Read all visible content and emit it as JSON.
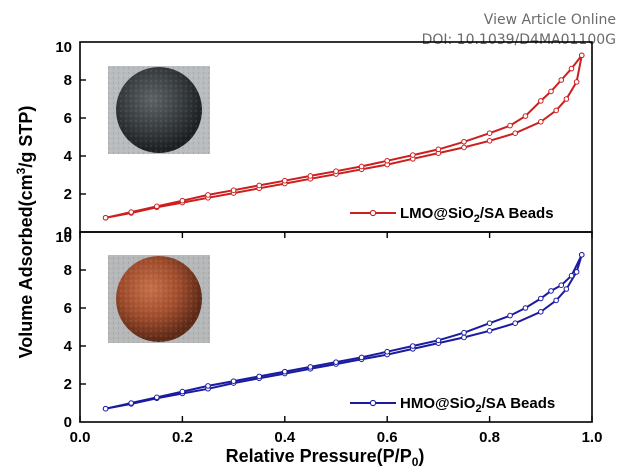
{
  "watermark": {
    "line1": "View Article Online",
    "line2": "DOI: 10.1039/D4MA01100G"
  },
  "chart_data": {
    "type": "line",
    "xlabel": "Relative Pressure(P/P",
    "xlabel_sub": "0",
    "xlabel_end": ")",
    "ylabel_pre": "Volume Adsorbed(cm",
    "ylabel_sup": "3",
    "ylabel_post": "/g STP)",
    "xlim": [
      0.0,
      1.0
    ],
    "xticks": [
      "0.0",
      "0.2",
      "0.4",
      "0.6",
      "0.8",
      "1.0"
    ],
    "panels": [
      {
        "ylim": [
          0,
          10
        ],
        "yticks": [
          "0",
          "2",
          "4",
          "6",
          "8",
          "10"
        ],
        "color": "#cc1f1f",
        "legend_position": "bottom-right",
        "legend_pre": "LMO@SiO",
        "legend_sub": "2",
        "legend_post": "/SA Beads",
        "inset_image": "black sphere bead photo",
        "series": [
          {
            "branch": "adsorption",
            "x": [
              0.05,
              0.1,
              0.15,
              0.2,
              0.25,
              0.3,
              0.35,
              0.4,
              0.45,
              0.5,
              0.55,
              0.6,
              0.65,
              0.7,
              0.75,
              0.8,
              0.85,
              0.9,
              0.93,
              0.95,
              0.97,
              0.98
            ],
            "y": [
              0.75,
              1.0,
              1.3,
              1.55,
              1.8,
              2.05,
              2.3,
              2.55,
              2.8,
              3.05,
              3.3,
              3.55,
              3.85,
              4.15,
              4.45,
              4.8,
              5.2,
              5.8,
              6.4,
              7.0,
              7.9,
              9.3
            ]
          },
          {
            "branch": "desorption",
            "x": [
              0.98,
              0.96,
              0.94,
              0.92,
              0.9,
              0.87,
              0.84,
              0.8,
              0.75,
              0.7,
              0.65,
              0.6,
              0.55,
              0.5,
              0.45,
              0.4,
              0.35,
              0.3,
              0.25,
              0.2,
              0.15,
              0.1,
              0.05
            ],
            "y": [
              9.3,
              8.6,
              8.0,
              7.4,
              6.9,
              6.1,
              5.6,
              5.2,
              4.75,
              4.35,
              4.05,
              3.75,
              3.45,
              3.2,
              2.95,
              2.7,
              2.45,
              2.2,
              1.95,
              1.65,
              1.35,
              1.05,
              0.75
            ]
          }
        ]
      },
      {
        "ylim": [
          0,
          10
        ],
        "yticks": [
          "0",
          "2",
          "4",
          "6",
          "8",
          "10"
        ],
        "color": "#1b1ba0",
        "legend_position": "bottom-right",
        "legend_pre": "HMO@SiO",
        "legend_sub": "2",
        "legend_post": "/SA Beads",
        "inset_image": "brown sphere bead photo",
        "series": [
          {
            "branch": "adsorption",
            "x": [
              0.05,
              0.1,
              0.15,
              0.2,
              0.25,
              0.3,
              0.35,
              0.4,
              0.45,
              0.5,
              0.55,
              0.6,
              0.65,
              0.7,
              0.75,
              0.8,
              0.85,
              0.9,
              0.93,
              0.95,
              0.97,
              0.98
            ],
            "y": [
              0.7,
              0.95,
              1.25,
              1.5,
              1.75,
              2.05,
              2.3,
              2.55,
              2.8,
              3.05,
              3.3,
              3.55,
              3.85,
              4.15,
              4.45,
              4.8,
              5.2,
              5.8,
              6.4,
              7.0,
              7.9,
              8.8
            ]
          },
          {
            "branch": "desorption",
            "x": [
              0.98,
              0.96,
              0.94,
              0.92,
              0.9,
              0.87,
              0.84,
              0.8,
              0.75,
              0.7,
              0.65,
              0.6,
              0.55,
              0.5,
              0.45,
              0.4,
              0.35,
              0.3,
              0.25,
              0.2,
              0.15,
              0.1,
              0.05
            ],
            "y": [
              8.8,
              7.7,
              7.2,
              6.9,
              6.5,
              6.0,
              5.6,
              5.2,
              4.7,
              4.3,
              4.0,
              3.7,
              3.4,
              3.15,
              2.9,
              2.65,
              2.4,
              2.15,
              1.9,
              1.6,
              1.3,
              1.0,
              0.7
            ]
          }
        ]
      }
    ]
  }
}
